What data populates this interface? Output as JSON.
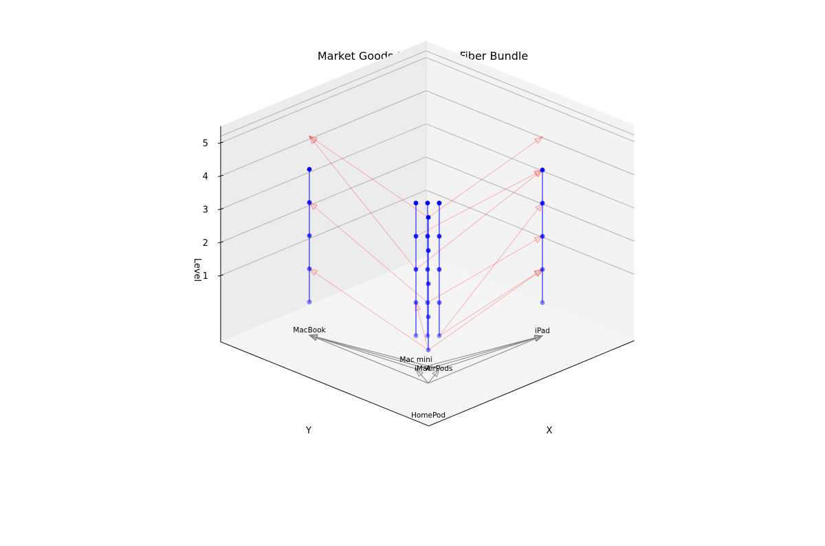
{
  "chart_data": {
    "type": "3d-fiber-bundle",
    "title": "Market Goods Preference Fiber Bundle",
    "xlabel": "X",
    "ylabel": "Y",
    "zlabel": "Level",
    "z_ticks": [
      1,
      2,
      3,
      4,
      5
    ],
    "zlim": [
      0,
      5.5
    ],
    "grid": true,
    "colors": {
      "fiber": "#0000ff",
      "base_edge": "#808080",
      "preference_arrow": "#ff0000",
      "pane": "#f2f2f2",
      "gridline": "#b0b0b0"
    },
    "goods": [
      {
        "name": "MacBook",
        "x": 0,
        "y": 1
      },
      {
        "name": "iPad",
        "x": 1,
        "y": 0
      },
      {
        "name": "Mac mini",
        "x": 0.1,
        "y": 0.2
      },
      {
        "name": "iMac",
        "x": 0.15,
        "y": 0.15
      },
      {
        "name": "AirPods",
        "x": 0.2,
        "y": 0.1
      },
      {
        "name": "HomePod",
        "x": 0,
        "y": 0
      }
    ],
    "base_edges": [
      [
        "HomePod",
        "MacBook"
      ],
      [
        "HomePod",
        "iPad"
      ],
      [
        "HomePod",
        "Mac mini"
      ],
      [
        "HomePod",
        "AirPods"
      ],
      [
        "Mac mini",
        "MacBook"
      ],
      [
        "Mac mini",
        "iPad"
      ],
      [
        "iMac",
        "MacBook"
      ],
      [
        "iMac",
        "iPad"
      ],
      [
        "AirPods",
        "MacBook"
      ],
      [
        "AirPods",
        "iPad"
      ]
    ],
    "fiber_levels": [
      1,
      2,
      3,
      4,
      5
    ],
    "preference_arrows": [
      {
        "from": "HomePod",
        "from_level": 1,
        "to": "MacBook",
        "to_level": 2
      },
      {
        "from": "HomePod",
        "from_level": 1,
        "to": "iPad",
        "to_level": 2
      },
      {
        "from": "HomePod",
        "from_level": 1,
        "to": "Mac mini",
        "to_level": 2
      },
      {
        "from": "iMac",
        "from_level": 2,
        "to": "MacBook",
        "to_level": 4
      },
      {
        "from": "iMac",
        "from_level": 2,
        "to": "iPad",
        "to_level": 3
      },
      {
        "from": "AirPods",
        "from_level": 1,
        "to": "iPad",
        "to_level": 2
      },
      {
        "from": "AirPods",
        "from_level": 1,
        "to": "iPad",
        "to_level": 4
      },
      {
        "from": "Mac mini",
        "from_level": 3,
        "to": "MacBook",
        "to_level": 6
      },
      {
        "from": "Mac mini",
        "from_level": 3,
        "to": "iPad",
        "to_level": 5
      },
      {
        "from": "HomePod",
        "from_level": 5,
        "to": "MacBook",
        "to_level": 6
      },
      {
        "from": "HomePod",
        "from_level": 5,
        "to": "iPad",
        "to_level": 6
      },
      {
        "from": "Mac mini",
        "from_level": 4,
        "to": "iPad",
        "to_level": 5
      }
    ]
  }
}
